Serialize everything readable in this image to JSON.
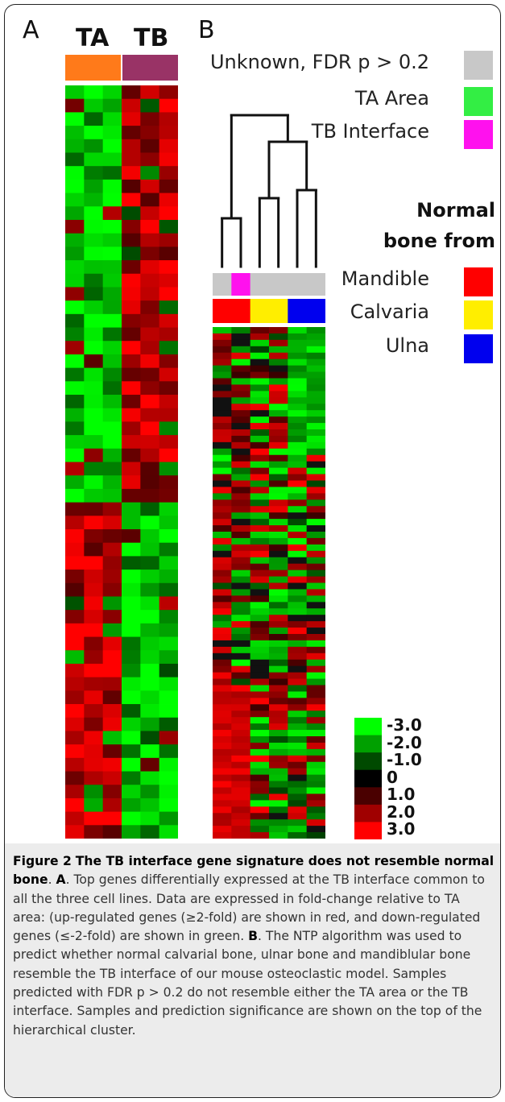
{
  "panel_a": {
    "letter": "A",
    "group_labels": [
      "TA",
      "TB"
    ],
    "group_colors": [
      "#ff7a1a",
      "#993366"
    ]
  },
  "panel_b": {
    "letter": "B",
    "prediction_legend": [
      {
        "label": "Unknown, FDR p > 0.2",
        "color": "#c8c8c8"
      },
      {
        "label": "TA Area",
        "color": "#33ee44"
      },
      {
        "label": "TB Interface",
        "color": "#ff11ee"
      }
    ],
    "normal_title_line1": "Normal",
    "normal_title_line2": "bone from",
    "bone_legend": [
      {
        "label": "Mandible",
        "color": "#ff0000"
      },
      {
        "label": "Calvaria",
        "color": "#ffee00"
      },
      {
        "label": "Ulna",
        "color": "#0000ee"
      }
    ],
    "sample_predictions": [
      "#c8c8c8",
      "#ff11ee",
      "#c8c8c8",
      "#c8c8c8",
      "#c8c8c8",
      "#c8c8c8"
    ],
    "sample_bones": [
      "#ff0000",
      "#ff0000",
      "#ffee00",
      "#ffee00",
      "#0000ee",
      "#0000ee"
    ]
  },
  "color_scale": {
    "labels": [
      "-3.0",
      "-2.0",
      "-1.0",
      "0",
      "1.0",
      "2.0",
      "3.0"
    ],
    "colors": [
      "#00ff00",
      "#00a000",
      "#004a00",
      "#000000",
      "#4a0000",
      "#a00000",
      "#ff0000"
    ]
  },
  "caption": {
    "fig_label": "Figure 2",
    "title": "The TB interface gene signature does not resemble normal bone",
    "a_label": "A",
    "a_text": ". Top genes differentially expressed at the TB interface common to all the three cell lines. Data are expressed in fold-change relative to TA area: (up-regulated genes (≥2-fold) are shown in red, and down-regulated genes (≤-2-fold) are shown in green. ",
    "b_label": "B",
    "b_text": ". The NTP algorithm was used to predict whether normal calvarial bone, ulnar bone and mandiblular bone resemble the TB interface of our mouse osteoclastic model. Samples predicted with FDR p > 0.2 do not resemble either the TA area or the TB interface. Samples and prediction significance are shown on the top of the hierarchical cluster."
  }
}
